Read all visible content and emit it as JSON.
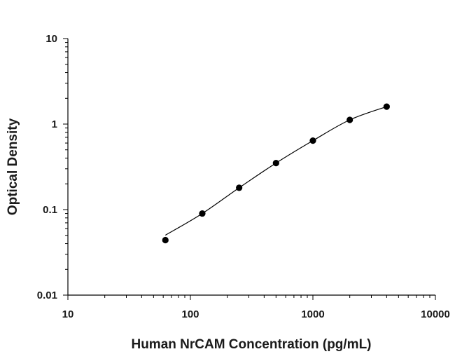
{
  "chart_data": {
    "type": "scatter",
    "title": "",
    "xlabel": "Human NrCAM Concentration (pg/mL)",
    "ylabel": "Optical Density",
    "xscale": "log",
    "yscale": "log",
    "xlim": [
      10,
      10000
    ],
    "ylim": [
      0.01,
      10
    ],
    "xticks": [
      10,
      100,
      1000,
      10000
    ],
    "xtick_labels": [
      "10",
      "100",
      "1000",
      "10000"
    ],
    "yticks": [
      0.01,
      0.1,
      1,
      10
    ],
    "ytick_labels": [
      "0.01",
      "0.1",
      "1",
      "10"
    ],
    "grid": false,
    "legend": "none",
    "marker_color": "#000000",
    "curve_color": "#000000",
    "x": [
      62.5,
      125,
      250,
      500,
      1000,
      2000,
      4000
    ],
    "y": [
      0.044,
      0.09,
      0.18,
      0.35,
      0.64,
      1.12,
      1.6
    ],
    "fit_curve": {
      "type": "four-parameter logistic",
      "x_range": [
        62.5,
        4000
      ]
    }
  }
}
